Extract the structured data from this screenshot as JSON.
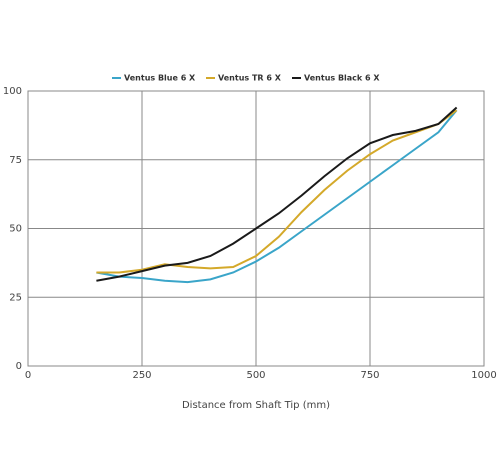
{
  "chart_data": {
    "type": "line",
    "x_label": "Distance from Shaft Tip (mm)",
    "x": [
      150,
      200,
      250,
      300,
      350,
      400,
      450,
      500,
      550,
      600,
      650,
      700,
      750,
      800,
      850,
      900,
      940
    ],
    "series": [
      {
        "name": "Ventus Blue 6 X",
        "color": "#3aa5c9",
        "values": [
          34,
          32.5,
          32,
          31,
          30.5,
          31.5,
          34,
          38,
          43,
          49,
          55,
          61,
          67,
          73,
          79,
          85,
          93
        ]
      },
      {
        "name": "Ventus TR 6 X",
        "color": "#d4a92a",
        "values": [
          34,
          34,
          35,
          37,
          36,
          35.5,
          36,
          40,
          47,
          56,
          64,
          71,
          77,
          82,
          85,
          88,
          93
        ]
      },
      {
        "name": "Ventus Black 6 X",
        "color": "#1a1a1a",
        "values": [
          31,
          32.5,
          34.5,
          36.5,
          37.5,
          40,
          44.5,
          50,
          55.5,
          62,
          69,
          75.5,
          81,
          84,
          85.5,
          88,
          94
        ]
      }
    ],
    "xlim": [
      0,
      1000
    ],
    "xticks": [
      0,
      250,
      500,
      750,
      1000
    ],
    "ylim": [
      0,
      100
    ],
    "yticks": [
      0,
      25,
      50,
      75,
      100
    ],
    "grid": true,
    "legend": "top"
  }
}
